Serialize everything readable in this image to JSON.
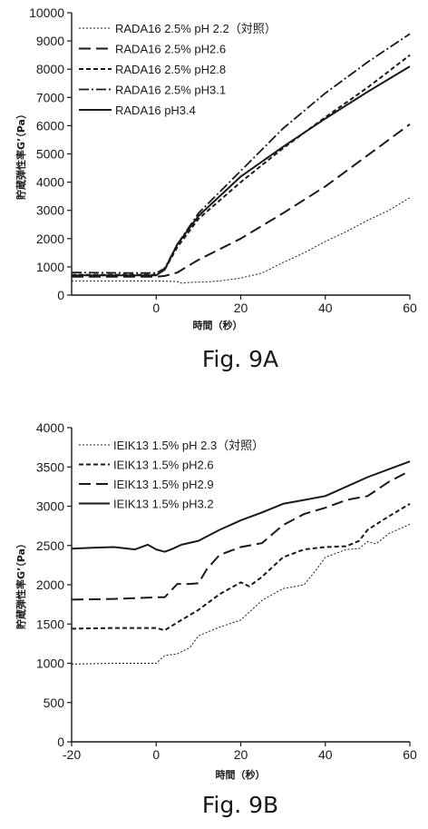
{
  "chart_data": [
    {
      "type": "line",
      "caption": "Fig. 9A",
      "xlabel": "時間（秒）",
      "ylabel": "貯蔵弾性率G’（Pa）",
      "xlim": [
        -20,
        60
      ],
      "ylim": [
        0,
        10000
      ],
      "xticks": [
        0,
        20,
        40,
        60
      ],
      "yticks": [
        0,
        1000,
        2000,
        3000,
        4000,
        5000,
        6000,
        7000,
        8000,
        9000,
        10000
      ],
      "grid": false,
      "legend_position": "top-left",
      "series": [
        {
          "name": "RADA16 2.5% pH 2.2（対照）",
          "style": "dotted-thin",
          "x": [
            -20,
            0,
            5,
            6,
            8,
            12,
            15,
            20,
            25,
            30,
            35,
            40,
            45,
            50,
            55,
            60
          ],
          "y": [
            500,
            500,
            480,
            420,
            450,
            470,
            500,
            600,
            780,
            1150,
            1500,
            1900,
            2250,
            2650,
            3000,
            3450
          ]
        },
        {
          "name": "RADA16 2.5% pH2.6",
          "style": "long-dash",
          "x": [
            -20,
            0,
            2,
            5,
            10,
            20,
            30,
            40,
            50,
            60
          ],
          "y": [
            650,
            650,
            680,
            800,
            1250,
            2000,
            2900,
            3850,
            4950,
            6050
          ]
        },
        {
          "name": "RADA16 2.5% pH2.8",
          "style": "short-dash",
          "x": [
            -20,
            -5,
            0,
            2,
            5,
            10,
            20,
            30,
            40,
            50,
            60
          ],
          "y": [
            720,
            720,
            720,
            900,
            1700,
            2700,
            4000,
            5200,
            6300,
            7350,
            8500
          ]
        },
        {
          "name": "RADA16 2.5% pH3.1",
          "style": "dash-dot",
          "x": [
            -20,
            -5,
            0,
            2,
            5,
            10,
            20,
            30,
            40,
            50,
            60
          ],
          "y": [
            800,
            780,
            780,
            950,
            1800,
            2900,
            4400,
            5900,
            7150,
            8250,
            9250
          ]
        },
        {
          "name": "RADA16 pH3.4",
          "style": "solid",
          "x": [
            -20,
            -5,
            0,
            2,
            5,
            10,
            20,
            30,
            40,
            50,
            60
          ],
          "y": [
            700,
            700,
            700,
            900,
            1800,
            2800,
            4200,
            5250,
            6250,
            7200,
            8100
          ]
        }
      ]
    },
    {
      "type": "line",
      "caption": "Fig. 9B",
      "xlabel": "時間（秒）",
      "ylabel": "貯蔵弾性率G’（Pa）",
      "xlim": [
        -20,
        60
      ],
      "ylim": [
        0,
        4000
      ],
      "xticks": [
        -20,
        0,
        20,
        40,
        60
      ],
      "yticks": [
        0,
        500,
        1000,
        1500,
        2000,
        2500,
        3000,
        3500,
        4000
      ],
      "grid": false,
      "legend_position": "top-left",
      "series": [
        {
          "name": "IEIK13 1.5% pH 2.3（対照）",
          "style": "dotted-thin",
          "x": [
            -20,
            -10,
            0,
            2,
            5,
            8,
            10,
            15,
            20,
            22,
            25,
            30,
            35,
            38,
            40,
            45,
            48,
            50,
            52,
            55,
            57,
            60
          ],
          "y": [
            990,
            1000,
            1000,
            1100,
            1120,
            1200,
            1350,
            1460,
            1550,
            1650,
            1800,
            1950,
            2000,
            2200,
            2350,
            2450,
            2460,
            2550,
            2520,
            2650,
            2700,
            2770
          ]
        },
        {
          "name": "IEIK13 1.5% pH2.6",
          "style": "short-dash",
          "x": [
            -20,
            -10,
            0,
            2,
            5,
            10,
            15,
            20,
            22,
            25,
            30,
            35,
            40,
            45,
            48,
            50,
            55,
            60
          ],
          "y": [
            1440,
            1450,
            1450,
            1420,
            1520,
            1680,
            1880,
            2030,
            1980,
            2100,
            2350,
            2450,
            2480,
            2490,
            2560,
            2700,
            2870,
            3030
          ]
        },
        {
          "name": "IEIK13 1.5% pH2.9",
          "style": "long-dash",
          "x": [
            -20,
            -10,
            0,
            2,
            5,
            8,
            10,
            12,
            15,
            20,
            25,
            30,
            35,
            40,
            45,
            50,
            55,
            60
          ],
          "y": [
            1810,
            1820,
            1840,
            1840,
            2010,
            2010,
            2020,
            2200,
            2380,
            2480,
            2530,
            2760,
            2900,
            2980,
            3080,
            3130,
            3310,
            3450
          ]
        },
        {
          "name": "IEIK13 1.5% pH3.2",
          "style": "solid",
          "x": [
            -20,
            -15,
            -10,
            -5,
            -2,
            0,
            2,
            4,
            6,
            10,
            15,
            20,
            25,
            30,
            35,
            40,
            45,
            50,
            55,
            60
          ],
          "y": [
            2460,
            2470,
            2480,
            2450,
            2510,
            2450,
            2420,
            2460,
            2510,
            2560,
            2700,
            2820,
            2920,
            3030,
            3080,
            3130,
            3250,
            3370,
            3470,
            3570
          ]
        }
      ]
    }
  ]
}
